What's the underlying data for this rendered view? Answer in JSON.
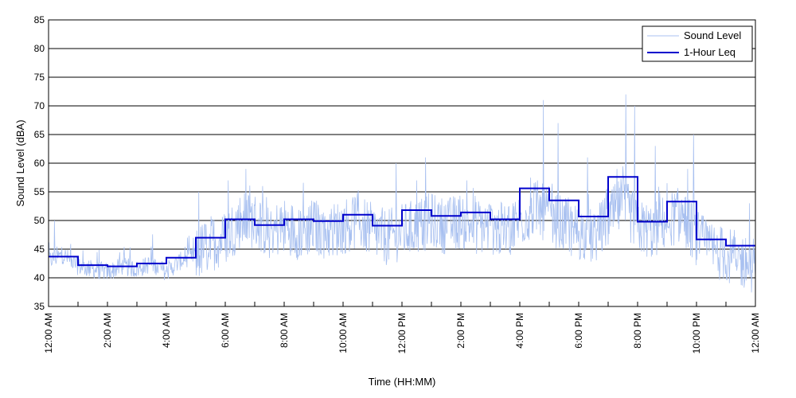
{
  "chart_data": {
    "type": "line",
    "title": "",
    "xlabel": "Time (HH:MM)",
    "ylabel": "Sound Level (dBA)",
    "xlim": [
      0,
      24
    ],
    "ylim": [
      35,
      85
    ],
    "y_ticks": [
      35,
      40,
      45,
      50,
      55,
      60,
      65,
      70,
      75,
      80,
      85
    ],
    "x_ticks": [
      {
        "hour": 0,
        "label": "12:00 AM"
      },
      {
        "hour": 2,
        "label": "2:00 AM"
      },
      {
        "hour": 4,
        "label": "4:00 AM"
      },
      {
        "hour": 6,
        "label": "6:00 AM"
      },
      {
        "hour": 8,
        "label": "8:00 AM"
      },
      {
        "hour": 10,
        "label": "10:00 AM"
      },
      {
        "hour": 12,
        "label": "12:00 PM"
      },
      {
        "hour": 14,
        "label": "2:00 PM"
      },
      {
        "hour": 16,
        "label": "4:00 PM"
      },
      {
        "hour": 18,
        "label": "6:00 PM"
      },
      {
        "hour": 20,
        "label": "8:00 PM"
      },
      {
        "hour": 22,
        "label": "10:00 PM"
      },
      {
        "hour": 24,
        "label": "12:00 AM"
      }
    ],
    "grid": "horizontal",
    "legend_position": "top-right",
    "series": [
      {
        "name": "Sound Level",
        "color": "#a8c0f0",
        "style": "thin-line",
        "x": [
          0,
          0.5,
          1,
          1.5,
          2,
          2.5,
          3,
          3.5,
          4,
          4.5,
          5,
          5.5,
          6,
          6.5,
          7,
          7.5,
          8,
          8.5,
          9,
          9.5,
          10,
          10.5,
          11,
          11.5,
          12,
          12.5,
          13,
          13.5,
          14,
          14.5,
          15,
          15.5,
          16,
          16.5,
          17,
          17.5,
          18,
          18.5,
          19,
          19.5,
          20,
          20.5,
          21,
          21.5,
          22,
          22.5,
          23,
          23.5,
          24
        ],
        "y": [
          43,
          44,
          42,
          41.5,
          41,
          42,
          41.5,
          42.5,
          41,
          43,
          44,
          46,
          47,
          50,
          50,
          48,
          49,
          48,
          49,
          48,
          49,
          50,
          48,
          47,
          48,
          49,
          50,
          49,
          50,
          49,
          49,
          48,
          50,
          52,
          51,
          49,
          48,
          47,
          50,
          53,
          49,
          48,
          50,
          51,
          47,
          45,
          44,
          43,
          42
        ],
        "peaks": [
          {
            "x": 0.2,
            "y": 50
          },
          {
            "x": 5.1,
            "y": 55
          },
          {
            "x": 6.1,
            "y": 57
          },
          {
            "x": 6.7,
            "y": 59
          },
          {
            "x": 11.8,
            "y": 60
          },
          {
            "x": 12.5,
            "y": 57
          },
          {
            "x": 12.8,
            "y": 61
          },
          {
            "x": 14.2,
            "y": 57
          },
          {
            "x": 16.6,
            "y": 57
          },
          {
            "x": 16.8,
            "y": 71
          },
          {
            "x": 17.3,
            "y": 67
          },
          {
            "x": 18.3,
            "y": 61
          },
          {
            "x": 19.3,
            "y": 59
          },
          {
            "x": 19.6,
            "y": 72
          },
          {
            "x": 19.9,
            "y": 70
          },
          {
            "x": 20.6,
            "y": 63
          },
          {
            "x": 21.7,
            "y": 59
          },
          {
            "x": 21.9,
            "y": 65
          },
          {
            "x": 23.8,
            "y": 53
          }
        ]
      },
      {
        "name": "1-Hour Leq",
        "color": "#0000cc",
        "style": "step",
        "bins_start_hour": [
          0,
          1,
          2,
          3,
          4,
          5,
          6,
          7,
          8,
          9,
          10,
          11,
          12,
          13,
          14,
          15,
          16,
          17,
          18,
          19,
          20,
          21,
          22,
          23
        ],
        "values": [
          43.7,
          42.2,
          42.0,
          42.5,
          43.5,
          47.0,
          50.2,
          49.2,
          50.2,
          49.9,
          51.0,
          49.1,
          51.8,
          50.8,
          51.4,
          50.2,
          55.6,
          53.5,
          50.7,
          57.6,
          49.8,
          53.3,
          46.7,
          45.6
        ]
      }
    ]
  }
}
